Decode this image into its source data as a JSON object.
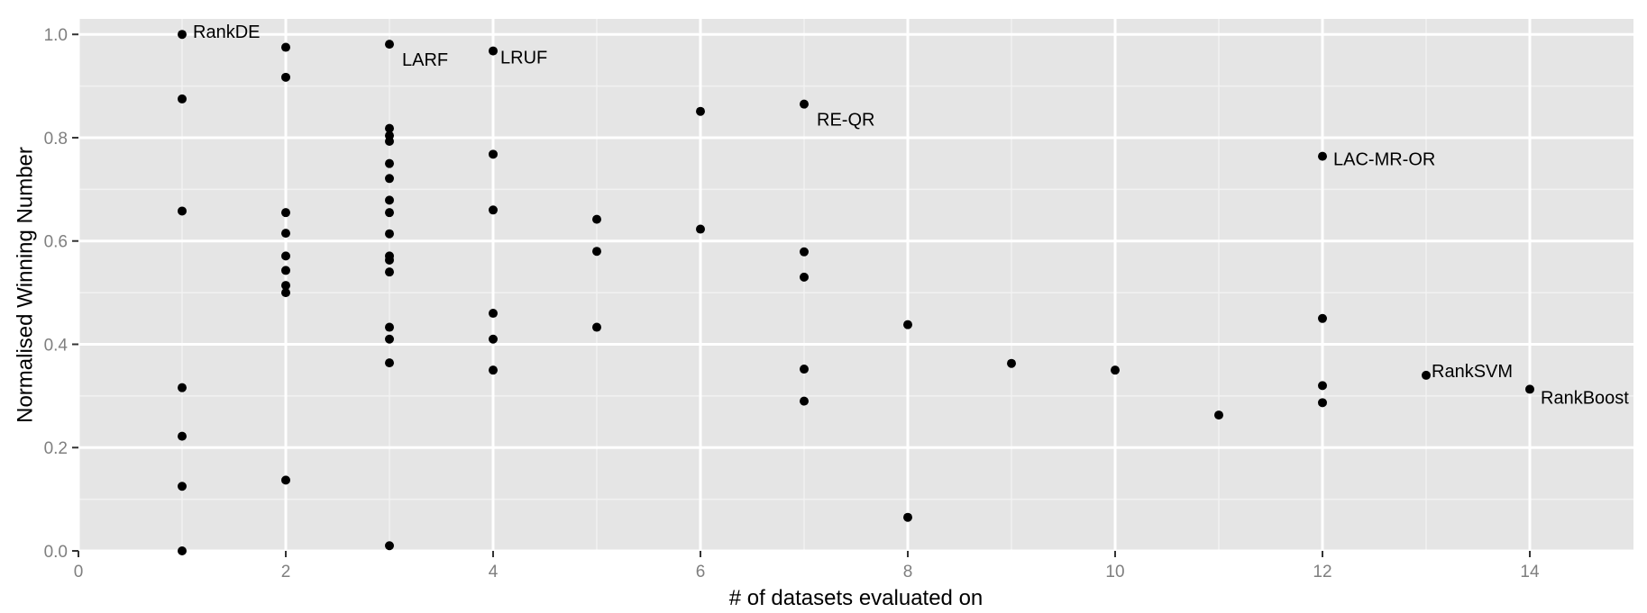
{
  "colors": {
    "panel_background": "#e5e5e5",
    "major_grid": "#ffffff",
    "minor_grid": "#f2f2f2",
    "point": "#000000",
    "tick_text": "#7f7f7f"
  },
  "chart_data": {
    "type": "scatter",
    "title": "",
    "xlabel": "# of datasets evaluated on",
    "ylabel": "Normalised Winning Number",
    "xlim": [
      0,
      15
    ],
    "ylim": [
      0,
      1.03
    ],
    "x_ticks": [
      0,
      2,
      4,
      6,
      8,
      10,
      12,
      14
    ],
    "y_ticks": [
      0.0,
      0.2,
      0.4,
      0.6,
      0.8,
      1.0
    ],
    "x_tick_labels": [
      "0",
      "2",
      "4",
      "6",
      "8",
      "10",
      "12",
      "14"
    ],
    "y_tick_labels": [
      "0.0",
      "0.2",
      "0.4",
      "0.6",
      "0.8",
      "1.0"
    ],
    "grid": true,
    "legend": "none",
    "points": [
      {
        "x": 1,
        "y": 1.0,
        "label": "RankDE"
      },
      {
        "x": 1,
        "y": 0.875
      },
      {
        "x": 1,
        "y": 0.658
      },
      {
        "x": 1,
        "y": 0.316
      },
      {
        "x": 1,
        "y": 0.222
      },
      {
        "x": 1,
        "y": 0.125
      },
      {
        "x": 1,
        "y": 0.0
      },
      {
        "x": 2,
        "y": 0.975
      },
      {
        "x": 2,
        "y": 0.917
      },
      {
        "x": 2,
        "y": 0.655
      },
      {
        "x": 2,
        "y": 0.615
      },
      {
        "x": 2,
        "y": 0.571
      },
      {
        "x": 2,
        "y": 0.543
      },
      {
        "x": 2,
        "y": 0.514
      },
      {
        "x": 2,
        "y": 0.5
      },
      {
        "x": 2,
        "y": 0.137
      },
      {
        "x": 3,
        "y": 0.981,
        "label": "LARF"
      },
      {
        "x": 3,
        "y": 0.818
      },
      {
        "x": 3,
        "y": 0.804
      },
      {
        "x": 3,
        "y": 0.793
      },
      {
        "x": 3,
        "y": 0.75
      },
      {
        "x": 3,
        "y": 0.721
      },
      {
        "x": 3,
        "y": 0.679
      },
      {
        "x": 3,
        "y": 0.655
      },
      {
        "x": 3,
        "y": 0.614
      },
      {
        "x": 3,
        "y": 0.571
      },
      {
        "x": 3,
        "y": 0.563
      },
      {
        "x": 3,
        "y": 0.54
      },
      {
        "x": 3,
        "y": 0.433
      },
      {
        "x": 3,
        "y": 0.41
      },
      {
        "x": 3,
        "y": 0.364
      },
      {
        "x": 3,
        "y": 0.01
      },
      {
        "x": 4,
        "y": 0.968,
        "label": "LRUF"
      },
      {
        "x": 4,
        "y": 0.768
      },
      {
        "x": 4,
        "y": 0.66
      },
      {
        "x": 4,
        "y": 0.46
      },
      {
        "x": 4,
        "y": 0.41
      },
      {
        "x": 4,
        "y": 0.35
      },
      {
        "x": 5,
        "y": 0.642
      },
      {
        "x": 5,
        "y": 0.58
      },
      {
        "x": 5,
        "y": 0.433
      },
      {
        "x": 6,
        "y": 0.851
      },
      {
        "x": 6,
        "y": 0.623
      },
      {
        "x": 7,
        "y": 0.865,
        "label": "RE-QR"
      },
      {
        "x": 7,
        "y": 0.579
      },
      {
        "x": 7,
        "y": 0.53
      },
      {
        "x": 7,
        "y": 0.352
      },
      {
        "x": 7,
        "y": 0.29
      },
      {
        "x": 8,
        "y": 0.438
      },
      {
        "x": 8,
        "y": 0.065
      },
      {
        "x": 9,
        "y": 0.363
      },
      {
        "x": 10,
        "y": 0.35
      },
      {
        "x": 11,
        "y": 0.263
      },
      {
        "x": 12,
        "y": 0.764,
        "label": "LAC-MR-OR"
      },
      {
        "x": 12,
        "y": 0.45
      },
      {
        "x": 12,
        "y": 0.32
      },
      {
        "x": 12,
        "y": 0.287
      },
      {
        "x": 13,
        "y": 0.34,
        "label": "RankSVM"
      },
      {
        "x": 14,
        "y": 0.313,
        "label": "RankBoost"
      }
    ]
  }
}
